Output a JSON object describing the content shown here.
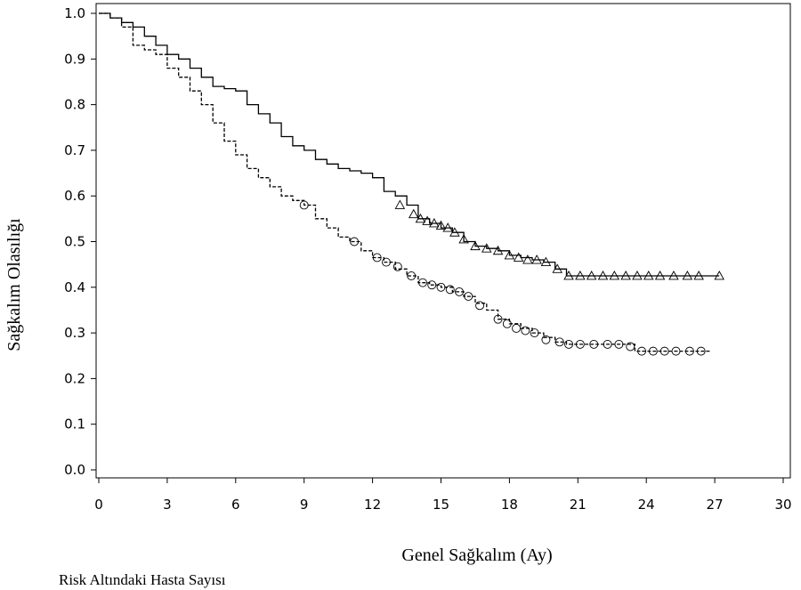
{
  "chart_data": {
    "type": "line",
    "title": "",
    "xlabel": "Genel Sağkalım (Ay)",
    "ylabel": "Sağkalım Olasılığı",
    "footer": "Risk Altındaki Hasta Sayısı",
    "xlim": [
      0,
      30
    ],
    "ylim": [
      0,
      1.0
    ],
    "xticks": [
      "0",
      "3",
      "6",
      "9",
      "12",
      "15",
      "18",
      "21",
      "24",
      "27",
      "30"
    ],
    "yticks": [
      "0.0",
      "0.1",
      "0.2",
      "0.3",
      "0.4",
      "0.5",
      "0.6",
      "0.7",
      "0.8",
      "0.9",
      "1.0"
    ],
    "grid": false,
    "series": [
      {
        "line_style": "solid",
        "censor_marker": "triangle",
        "color": "#000000",
        "points": [
          [
            0,
            1.0
          ],
          [
            0.5,
            0.99
          ],
          [
            1,
            0.98
          ],
          [
            1.5,
            0.97
          ],
          [
            2,
            0.95
          ],
          [
            2.5,
            0.93
          ],
          [
            3,
            0.91
          ],
          [
            3.5,
            0.9
          ],
          [
            4,
            0.88
          ],
          [
            4.5,
            0.86
          ],
          [
            5,
            0.84
          ],
          [
            5.5,
            0.835
          ],
          [
            6,
            0.83
          ],
          [
            6.5,
            0.8
          ],
          [
            7,
            0.78
          ],
          [
            7.5,
            0.76
          ],
          [
            8,
            0.73
          ],
          [
            8.5,
            0.71
          ],
          [
            9,
            0.7
          ],
          [
            9.5,
            0.68
          ],
          [
            10,
            0.67
          ],
          [
            10.5,
            0.66
          ],
          [
            11,
            0.655
          ],
          [
            11.5,
            0.65
          ],
          [
            12,
            0.64
          ],
          [
            12.5,
            0.61
          ],
          [
            13,
            0.6
          ],
          [
            13.5,
            0.58
          ],
          [
            14,
            0.55
          ],
          [
            14.5,
            0.54
          ],
          [
            15,
            0.53
          ],
          [
            15.5,
            0.52
          ],
          [
            16,
            0.5
          ],
          [
            16.5,
            0.49
          ],
          [
            17,
            0.485
          ],
          [
            17.5,
            0.48
          ],
          [
            18,
            0.47
          ],
          [
            18.5,
            0.465
          ],
          [
            19,
            0.46
          ],
          [
            19.5,
            0.455
          ],
          [
            20,
            0.44
          ],
          [
            20.5,
            0.425
          ],
          [
            21,
            0.425
          ],
          [
            24,
            0.425
          ],
          [
            27.2,
            0.425
          ]
        ],
        "censored": [
          [
            13.2,
            0.58
          ],
          [
            13.8,
            0.56
          ],
          [
            14.1,
            0.55
          ],
          [
            14.4,
            0.545
          ],
          [
            14.7,
            0.54
          ],
          [
            15,
            0.535
          ],
          [
            15.3,
            0.53
          ],
          [
            15.6,
            0.52
          ],
          [
            16,
            0.505
          ],
          [
            16.5,
            0.49
          ],
          [
            17,
            0.485
          ],
          [
            17.5,
            0.48
          ],
          [
            18,
            0.47
          ],
          [
            18.4,
            0.465
          ],
          [
            18.8,
            0.46
          ],
          [
            19.2,
            0.46
          ],
          [
            19.6,
            0.455
          ],
          [
            20.1,
            0.44
          ],
          [
            20.6,
            0.425
          ],
          [
            21.1,
            0.425
          ],
          [
            21.6,
            0.425
          ],
          [
            22.1,
            0.425
          ],
          [
            22.6,
            0.425
          ],
          [
            23.1,
            0.425
          ],
          [
            23.6,
            0.425
          ],
          [
            24.1,
            0.425
          ],
          [
            24.6,
            0.425
          ],
          [
            25.2,
            0.425
          ],
          [
            25.8,
            0.425
          ],
          [
            26.3,
            0.425
          ],
          [
            27.2,
            0.425
          ]
        ]
      },
      {
        "line_style": "dashed",
        "censor_marker": "circle",
        "color": "#000000",
        "points": [
          [
            0,
            1.0
          ],
          [
            0.5,
            0.99
          ],
          [
            1,
            0.97
          ],
          [
            1.5,
            0.93
          ],
          [
            2,
            0.92
          ],
          [
            2.5,
            0.91
          ],
          [
            3,
            0.88
          ],
          [
            3.5,
            0.86
          ],
          [
            4,
            0.83
          ],
          [
            4.5,
            0.8
          ],
          [
            5,
            0.76
          ],
          [
            5.5,
            0.72
          ],
          [
            6,
            0.69
          ],
          [
            6.5,
            0.66
          ],
          [
            7,
            0.64
          ],
          [
            7.5,
            0.62
          ],
          [
            8,
            0.6
          ],
          [
            8.5,
            0.59
          ],
          [
            9,
            0.58
          ],
          [
            9.5,
            0.55
          ],
          [
            10,
            0.53
          ],
          [
            10.5,
            0.51
          ],
          [
            11,
            0.5
          ],
          [
            11.5,
            0.48
          ],
          [
            12,
            0.465
          ],
          [
            12.5,
            0.455
          ],
          [
            13,
            0.44
          ],
          [
            13.5,
            0.425
          ],
          [
            14,
            0.41
          ],
          [
            14.5,
            0.405
          ],
          [
            15,
            0.4
          ],
          [
            15.5,
            0.39
          ],
          [
            16,
            0.38
          ],
          [
            16.5,
            0.365
          ],
          [
            17,
            0.35
          ],
          [
            17.5,
            0.33
          ],
          [
            18,
            0.32
          ],
          [
            18.5,
            0.31
          ],
          [
            19,
            0.3
          ],
          [
            19.5,
            0.29
          ],
          [
            20,
            0.28
          ],
          [
            20.5,
            0.275
          ],
          [
            21,
            0.275
          ],
          [
            23,
            0.275
          ],
          [
            23.5,
            0.26
          ],
          [
            24,
            0.26
          ],
          [
            26.8,
            0.26
          ]
        ],
        "censored": [
          [
            9,
            0.58
          ],
          [
            11.2,
            0.5
          ],
          [
            12.2,
            0.465
          ],
          [
            12.6,
            0.455
          ],
          [
            13.1,
            0.445
          ],
          [
            13.7,
            0.425
          ],
          [
            14.2,
            0.41
          ],
          [
            14.6,
            0.405
          ],
          [
            15,
            0.4
          ],
          [
            15.4,
            0.395
          ],
          [
            15.8,
            0.39
          ],
          [
            16.2,
            0.38
          ],
          [
            16.7,
            0.36
          ],
          [
            17.5,
            0.33
          ],
          [
            17.9,
            0.32
          ],
          [
            18.3,
            0.31
          ],
          [
            18.7,
            0.305
          ],
          [
            19.1,
            0.3
          ],
          [
            19.6,
            0.285
          ],
          [
            20.2,
            0.28
          ],
          [
            20.6,
            0.275
          ],
          [
            21.1,
            0.275
          ],
          [
            21.7,
            0.275
          ],
          [
            22.3,
            0.275
          ],
          [
            22.8,
            0.275
          ],
          [
            23.3,
            0.27
          ],
          [
            23.8,
            0.26
          ],
          [
            24.3,
            0.26
          ],
          [
            24.8,
            0.26
          ],
          [
            25.3,
            0.26
          ],
          [
            25.9,
            0.26
          ],
          [
            26.4,
            0.26
          ]
        ]
      }
    ]
  }
}
